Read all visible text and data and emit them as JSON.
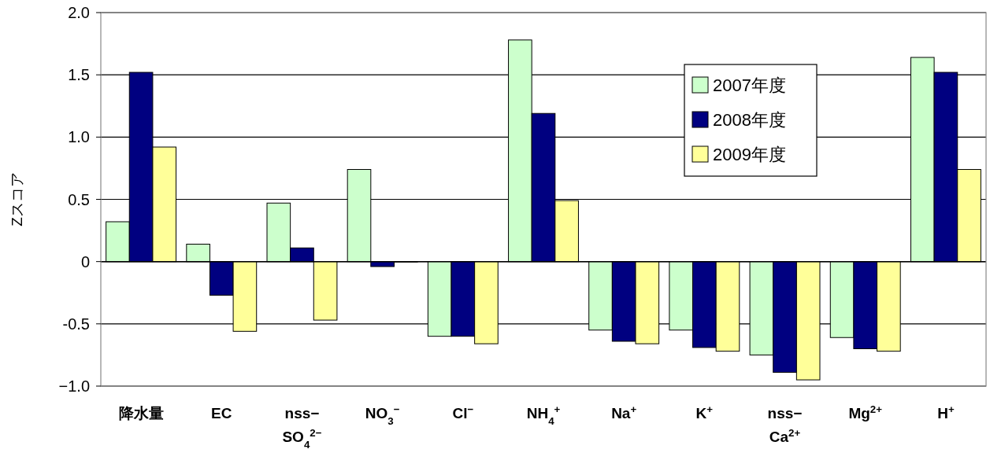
{
  "chart_data": {
    "type": "bar",
    "ylabel": "Zスコア",
    "categories": [
      "降水量",
      "EC",
      "nss−\nSO$_{4}$$^{2−}$",
      "NO$_{3}$$^{−}$",
      "Cl$^{−}$",
      "NH$_{4}$$^{+}$",
      "Na$^{+}$",
      "K$^{+}$",
      "nss−\nCa$^{2+}$",
      "Mg$^{2+}$",
      "H$^{+}$"
    ],
    "series": [
      {
        "name": "2007年度",
        "color": "#ccffcc",
        "values": [
          0.32,
          0.14,
          0.47,
          0.74,
          -0.6,
          1.78,
          -0.55,
          -0.55,
          -0.75,
          -0.61,
          1.64
        ]
      },
      {
        "name": "2008年度",
        "color": "#000080",
        "values": [
          1.52,
          -0.27,
          0.11,
          -0.04,
          -0.6,
          1.19,
          -0.64,
          -0.69,
          -0.89,
          -0.7,
          1.52
        ]
      },
      {
        "name": "2009年度",
        "color": "#ffff99",
        "values": [
          0.92,
          -0.56,
          -0.47,
          0.0,
          -0.66,
          0.49,
          -0.66,
          -0.72,
          -0.95,
          -0.72,
          0.74
        ]
      }
    ],
    "ylim": [
      -1.0,
      2.0
    ],
    "yticks": [
      {
        "value": -1.0,
        "label": "−1.0"
      },
      {
        "value": -0.5,
        "label": "-0.5"
      },
      0,
      {
        "value": 0.5,
        "label": "0.5"
      },
      {
        "value": 1.0,
        "label": "1.0"
      },
      {
        "value": 1.5,
        "label": "1.5"
      },
      {
        "value": 2.0,
        "label": "2.0"
      }
    ],
    "grid": "y",
    "legend": "top right"
  }
}
